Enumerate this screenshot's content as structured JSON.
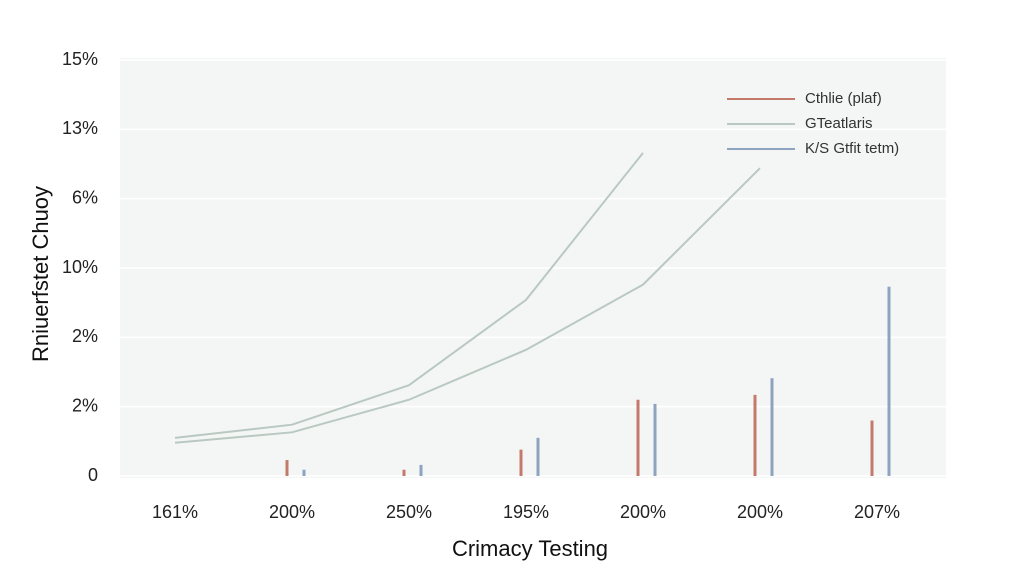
{
  "chart_data": {
    "type": "bar",
    "y_label": "Rniuerfstet Chuoy",
    "x_label": "Crimacy Testing",
    "categories": [
      "161%",
      "200%",
      "250%",
      "195%",
      "200%",
      "200%",
      "207%"
    ],
    "ylim": [
      0,
      6
    ],
    "yticks": [
      {
        "value": 0,
        "label": "0"
      },
      {
        "value": 1,
        "label": "2%"
      },
      {
        "value": 2,
        "label": "2%"
      },
      {
        "value": 3,
        "label": "10%"
      },
      {
        "value": 4,
        "label": "6%"
      },
      {
        "value": 5,
        "label": "13%"
      },
      {
        "value": 6,
        "label": "15%"
      }
    ],
    "grid": true,
    "legend": "upper right",
    "series": [
      {
        "name": "Cthlie (plaf)",
        "type": "bar",
        "color": "#c47a6a",
        "values": [
          0,
          0.23,
          0.09,
          0.38,
          1.1,
          1.17,
          0.8
        ]
      },
      {
        "name": "GTeatlaris",
        "type": "line",
        "color": "#b9c9c1",
        "values": [
          0.55,
          0.74,
          1.31,
          2.54,
          4.66,
          null,
          null
        ]
      },
      {
        "name": "K/S Gtfit tetm)",
        "type": "bar",
        "color": "#8ea3c0",
        "values": [
          0,
          0.09,
          0.16,
          0.55,
          1.04,
          1.41,
          2.73
        ]
      },
      {
        "type": "line",
        "color": "#b9c9c1",
        "values": [
          0.48,
          0.63,
          1.1,
          1.82,
          2.76,
          4.44,
          null
        ]
      }
    ]
  }
}
